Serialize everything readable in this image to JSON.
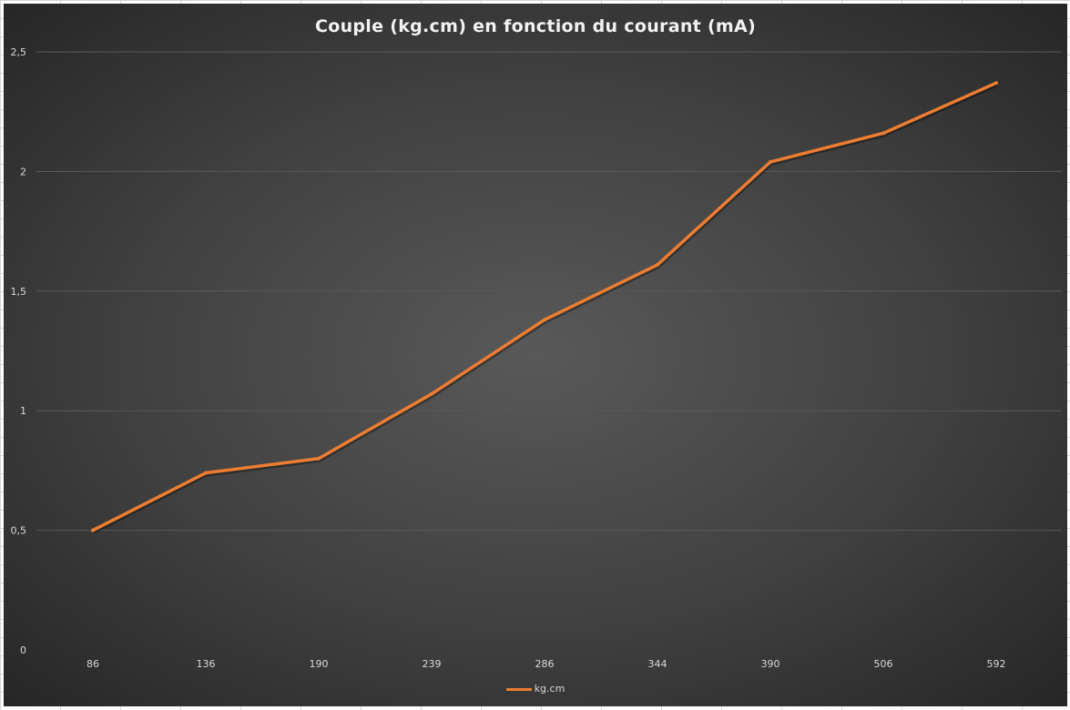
{
  "chart_data": {
    "type": "line",
    "title": "Couple (kg.cm) en fonction du courant (mA)",
    "xlabel": "",
    "ylabel": "",
    "categories": [
      "86",
      "136",
      "190",
      "239",
      "286",
      "344",
      "390",
      "506",
      "592"
    ],
    "series": [
      {
        "name": "kg.cm",
        "values": [
          0.5,
          0.74,
          0.8,
          1.07,
          1.38,
          1.61,
          2.04,
          2.16,
          2.37
        ]
      }
    ],
    "ylim": [
      0,
      2.5
    ],
    "yticks": [
      "0",
      "0,5",
      "1",
      "1,5",
      "2",
      "2,5"
    ],
    "ytick_values": [
      0,
      0.5,
      1,
      1.5,
      2,
      2.5
    ],
    "grid": true,
    "legend": "bottom",
    "colors": {
      "series": "#ed7d31",
      "background": "#404040",
      "gridline": "#595959",
      "text": "#d9d9d9"
    }
  }
}
